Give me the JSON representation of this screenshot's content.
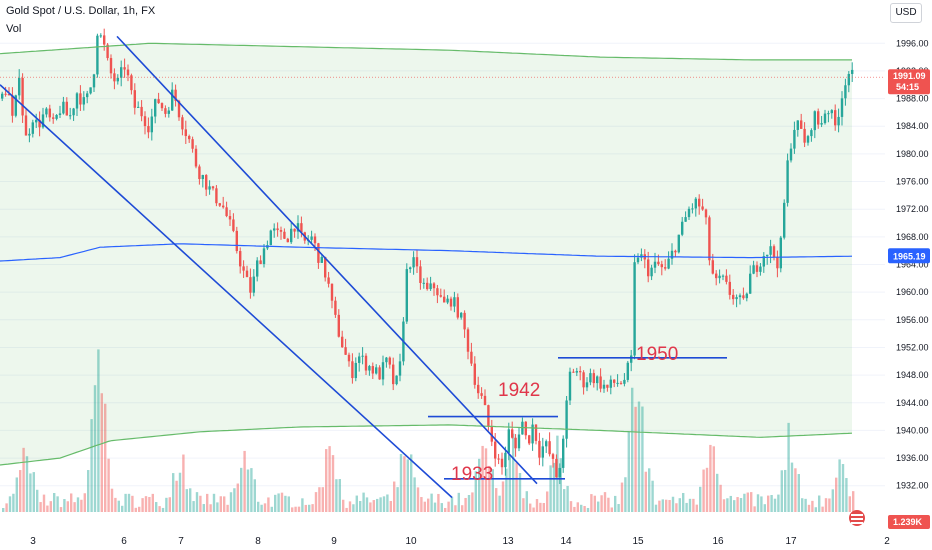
{
  "header": {
    "symbol": "Gold Spot / U.S. Dollar, 1h, FX",
    "volume_label": "Vol",
    "currency": "USD"
  },
  "chart_data": {
    "type": "candlestick",
    "x_ticks": [
      "3",
      "6",
      "7",
      "8",
      "9",
      "10",
      "13",
      "14",
      "15",
      "16",
      "17",
      "2"
    ],
    "y_ticks": [
      1932,
      1936,
      1940,
      1944,
      1948,
      1952,
      1956,
      1960,
      1964,
      1968,
      1972,
      1976,
      1980,
      1984,
      1988,
      1992,
      1996
    ],
    "ylim": [
      1928.2,
      1998.5
    ],
    "last_price": "1991.09",
    "countdown": "54:15",
    "band_mid_price": "1965.19",
    "volume_last": "1.239K",
    "annotations": [
      "1942",
      "1950",
      "1933"
    ],
    "horizontal_levels": [
      {
        "label": "1942",
        "price": 1942
      },
      {
        "label": "1950",
        "price": 1950.5
      },
      {
        "label": "1933",
        "price": 1933
      }
    ],
    "series": [
      {
        "name": "price",
        "kind": "candles",
        "ohlc_path": [
          [
            0,
            1988
          ],
          [
            6,
            1990
          ],
          [
            12,
            1984
          ],
          [
            18,
            1992
          ],
          [
            22,
            1985
          ],
          [
            26,
            1981
          ],
          [
            30,
            1986
          ],
          [
            36,
            1984
          ],
          [
            44,
            1986
          ],
          [
            52,
            1984
          ],
          [
            60,
            1987
          ],
          [
            68,
            1985
          ],
          [
            76,
            1989
          ],
          [
            84,
            1987
          ],
          [
            92,
            1991
          ],
          [
            96,
            1998
          ],
          [
            102,
            1996
          ],
          [
            108,
            1992
          ],
          [
            116,
            1990
          ],
          [
            124,
            1993
          ],
          [
            132,
            1987
          ],
          [
            140,
            1986
          ],
          [
            148,
            1984
          ],
          [
            156,
            1988
          ],
          [
            164,
            1986
          ],
          [
            172,
            1989
          ],
          [
            180,
            1985
          ],
          [
            188,
            1982
          ],
          [
            196,
            1978
          ],
          [
            204,
            1976
          ],
          [
            212,
            1974
          ],
          [
            220,
            1973
          ],
          [
            228,
            1970
          ],
          [
            236,
            1966
          ],
          [
            244,
            1962
          ],
          [
            250,
            1960
          ],
          [
            256,
            1964
          ],
          [
            262,
            1966
          ],
          [
            270,
            1969
          ],
          [
            278,
            1968
          ],
          [
            286,
            1968
          ],
          [
            294,
            1970
          ],
          [
            302,
            1967
          ],
          [
            310,
            1968
          ],
          [
            318,
            1965
          ],
          [
            326,
            1962
          ],
          [
            332,
            1957
          ],
          [
            338,
            1954
          ],
          [
            344,
            1951
          ],
          [
            350,
            1948
          ],
          [
            356,
            1951
          ],
          [
            362,
            1950
          ],
          [
            370,
            1949
          ],
          [
            378,
            1948
          ],
          [
            386,
            1950
          ],
          [
            394,
            1946
          ],
          [
            400,
            1950
          ],
          [
            404,
            1962
          ],
          [
            410,
            1965
          ],
          [
            418,
            1962
          ],
          [
            426,
            1960
          ],
          [
            434,
            1961
          ],
          [
            442,
            1958
          ],
          [
            450,
            1959
          ],
          [
            458,
            1957
          ],
          [
            464,
            1954
          ],
          [
            470,
            1950
          ],
          [
            476,
            1946
          ],
          [
            482,
            1944
          ],
          [
            488,
            1940
          ],
          [
            494,
            1937
          ],
          [
            500,
            1934
          ],
          [
            508,
            1940
          ],
          [
            514,
            1937
          ],
          [
            520,
            1942
          ],
          [
            526,
            1938
          ],
          [
            532,
            1941
          ],
          [
            538,
            1937
          ],
          [
            544,
            1938
          ],
          [
            550,
            1936
          ],
          [
            556,
            1933
          ],
          [
            562,
            1938
          ],
          [
            568,
            1948
          ],
          [
            574,
            1949
          ],
          [
            582,
            1947
          ],
          [
            590,
            1948
          ],
          [
            598,
            1947
          ],
          [
            606,
            1946
          ],
          [
            614,
            1947
          ],
          [
            622,
            1947
          ],
          [
            630,
            1950
          ],
          [
            634,
            1966
          ],
          [
            640,
            1965
          ],
          [
            648,
            1963
          ],
          [
            656,
            1964
          ],
          [
            664,
            1963
          ],
          [
            672,
            1966
          ],
          [
            680,
            1969
          ],
          [
            688,
            1972
          ],
          [
            696,
            1973
          ],
          [
            704,
            1971
          ],
          [
            708,
            1965
          ],
          [
            714,
            1961
          ],
          [
            720,
            1962
          ],
          [
            728,
            1960
          ],
          [
            736,
            1959
          ],
          [
            742,
            1958
          ],
          [
            748,
            1962
          ],
          [
            756,
            1964
          ],
          [
            764,
            1966
          ],
          [
            770,
            1966
          ],
          [
            778,
            1964
          ],
          [
            786,
            1978
          ],
          [
            792,
            1984
          ],
          [
            798,
            1984
          ],
          [
            806,
            1981
          ],
          [
            812,
            1986
          ],
          [
            818,
            1984
          ],
          [
            826,
            1987
          ],
          [
            834,
            1984
          ],
          [
            840,
            1988
          ],
          [
            846,
            1992
          ],
          [
            852,
            1991
          ]
        ]
      },
      {
        "name": "upper-band",
        "kind": "line",
        "path": [
          [
            0,
            1994.5
          ],
          [
            150,
            1996.0
          ],
          [
            300,
            1995.5
          ],
          [
            450,
            1995.0
          ],
          [
            600,
            1994.0
          ],
          [
            750,
            1993.6
          ],
          [
            852,
            1993.6
          ]
        ]
      },
      {
        "name": "middle-band",
        "kind": "line",
        "path": [
          [
            0,
            1964.5
          ],
          [
            60,
            1965.0
          ],
          [
            100,
            1966.5
          ],
          [
            180,
            1967.0
          ],
          [
            300,
            1966.5
          ],
          [
            450,
            1966.0
          ],
          [
            600,
            1965.2
          ],
          [
            750,
            1965.0
          ],
          [
            852,
            1965.2
          ]
        ]
      },
      {
        "name": "lower-band",
        "kind": "line",
        "path": [
          [
            0,
            1935.0
          ],
          [
            60,
            1936.0
          ],
          [
            110,
            1938.5
          ],
          [
            200,
            1939.8
          ],
          [
            300,
            1940.5
          ],
          [
            450,
            1940.8
          ],
          [
            600,
            1940.0
          ],
          [
            760,
            1939.0
          ],
          [
            852,
            1939.6
          ]
        ]
      }
    ],
    "trendlines": [
      {
        "name": "upper-channel",
        "from": [
          117,
          1997
        ],
        "to": [
          537,
          1932.3
        ]
      },
      {
        "name": "lower-channel",
        "from": [
          0,
          1990
        ],
        "to": [
          452,
          1930.3
        ]
      }
    ]
  }
}
